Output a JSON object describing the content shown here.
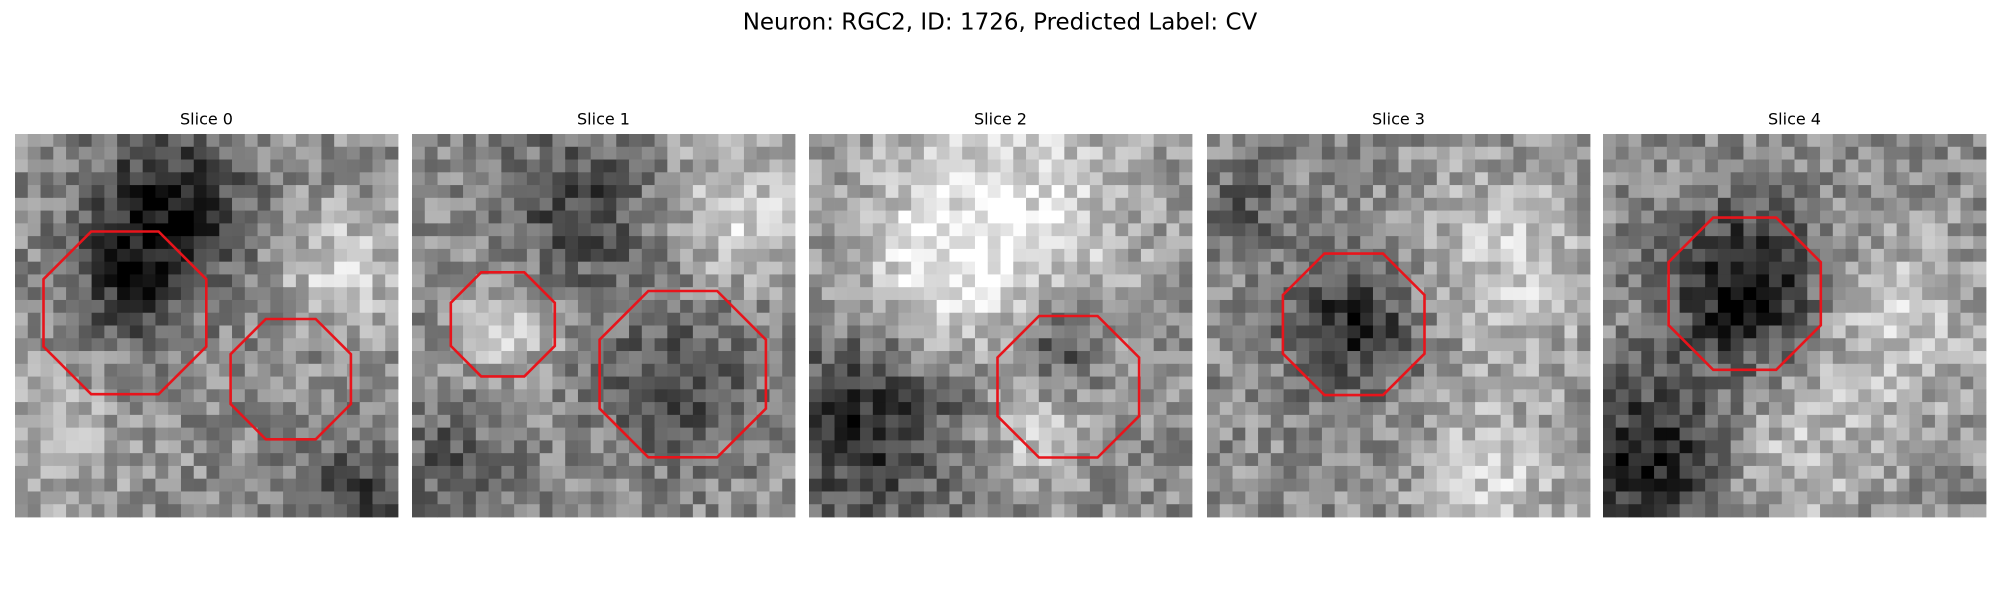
{
  "figure": {
    "title": "Neuron: RGC2, ID: 1726, Predicted Label: CV",
    "panels": [
      {
        "title": "Slice 0"
      },
      {
        "title": "Slice 1"
      },
      {
        "title": "Slice 2"
      },
      {
        "title": "Slice 3"
      },
      {
        "title": "Slice 4"
      }
    ]
  }
}
